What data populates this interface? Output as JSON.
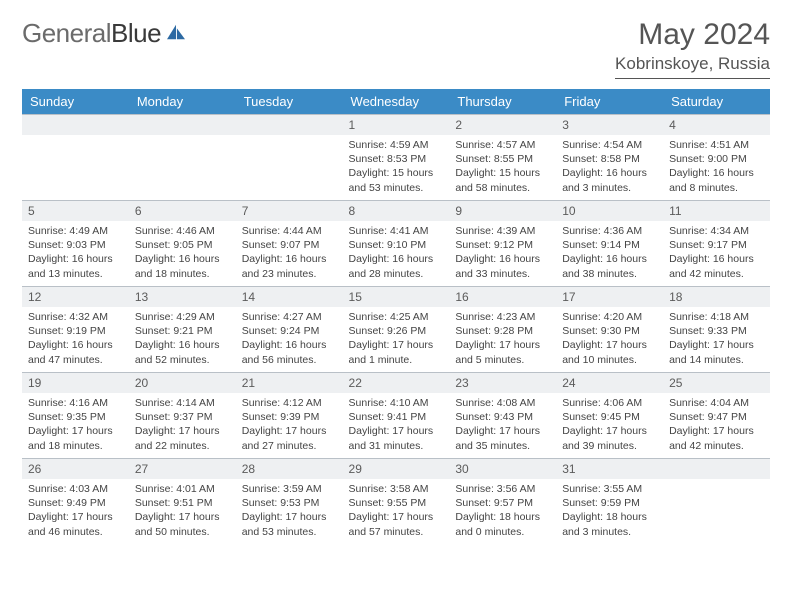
{
  "brand": {
    "text1": "General",
    "text2": "Blue"
  },
  "title": "May 2024",
  "location": "Kobrinskoye, Russia",
  "header_bg": "#3b8bc6",
  "daynum_bg": "#eef0f2",
  "border_color": "#b9c0c7",
  "day_names": [
    "Sunday",
    "Monday",
    "Tuesday",
    "Wednesday",
    "Thursday",
    "Friday",
    "Saturday"
  ],
  "first_weekday": 3,
  "days": [
    {
      "n": 1,
      "sr": "4:59 AM",
      "ss": "8:53 PM",
      "dl": "15 hours and 53 minutes."
    },
    {
      "n": 2,
      "sr": "4:57 AM",
      "ss": "8:55 PM",
      "dl": "15 hours and 58 minutes."
    },
    {
      "n": 3,
      "sr": "4:54 AM",
      "ss": "8:58 PM",
      "dl": "16 hours and 3 minutes."
    },
    {
      "n": 4,
      "sr": "4:51 AM",
      "ss": "9:00 PM",
      "dl": "16 hours and 8 minutes."
    },
    {
      "n": 5,
      "sr": "4:49 AM",
      "ss": "9:03 PM",
      "dl": "16 hours and 13 minutes."
    },
    {
      "n": 6,
      "sr": "4:46 AM",
      "ss": "9:05 PM",
      "dl": "16 hours and 18 minutes."
    },
    {
      "n": 7,
      "sr": "4:44 AM",
      "ss": "9:07 PM",
      "dl": "16 hours and 23 minutes."
    },
    {
      "n": 8,
      "sr": "4:41 AM",
      "ss": "9:10 PM",
      "dl": "16 hours and 28 minutes."
    },
    {
      "n": 9,
      "sr": "4:39 AM",
      "ss": "9:12 PM",
      "dl": "16 hours and 33 minutes."
    },
    {
      "n": 10,
      "sr": "4:36 AM",
      "ss": "9:14 PM",
      "dl": "16 hours and 38 minutes."
    },
    {
      "n": 11,
      "sr": "4:34 AM",
      "ss": "9:17 PM",
      "dl": "16 hours and 42 minutes."
    },
    {
      "n": 12,
      "sr": "4:32 AM",
      "ss": "9:19 PM",
      "dl": "16 hours and 47 minutes."
    },
    {
      "n": 13,
      "sr": "4:29 AM",
      "ss": "9:21 PM",
      "dl": "16 hours and 52 minutes."
    },
    {
      "n": 14,
      "sr": "4:27 AM",
      "ss": "9:24 PM",
      "dl": "16 hours and 56 minutes."
    },
    {
      "n": 15,
      "sr": "4:25 AM",
      "ss": "9:26 PM",
      "dl": "17 hours and 1 minute."
    },
    {
      "n": 16,
      "sr": "4:23 AM",
      "ss": "9:28 PM",
      "dl": "17 hours and 5 minutes."
    },
    {
      "n": 17,
      "sr": "4:20 AM",
      "ss": "9:30 PM",
      "dl": "17 hours and 10 minutes."
    },
    {
      "n": 18,
      "sr": "4:18 AM",
      "ss": "9:33 PM",
      "dl": "17 hours and 14 minutes."
    },
    {
      "n": 19,
      "sr": "4:16 AM",
      "ss": "9:35 PM",
      "dl": "17 hours and 18 minutes."
    },
    {
      "n": 20,
      "sr": "4:14 AM",
      "ss": "9:37 PM",
      "dl": "17 hours and 22 minutes."
    },
    {
      "n": 21,
      "sr": "4:12 AM",
      "ss": "9:39 PM",
      "dl": "17 hours and 27 minutes."
    },
    {
      "n": 22,
      "sr": "4:10 AM",
      "ss": "9:41 PM",
      "dl": "17 hours and 31 minutes."
    },
    {
      "n": 23,
      "sr": "4:08 AM",
      "ss": "9:43 PM",
      "dl": "17 hours and 35 minutes."
    },
    {
      "n": 24,
      "sr": "4:06 AM",
      "ss": "9:45 PM",
      "dl": "17 hours and 39 minutes."
    },
    {
      "n": 25,
      "sr": "4:04 AM",
      "ss": "9:47 PM",
      "dl": "17 hours and 42 minutes."
    },
    {
      "n": 26,
      "sr": "4:03 AM",
      "ss": "9:49 PM",
      "dl": "17 hours and 46 minutes."
    },
    {
      "n": 27,
      "sr": "4:01 AM",
      "ss": "9:51 PM",
      "dl": "17 hours and 50 minutes."
    },
    {
      "n": 28,
      "sr": "3:59 AM",
      "ss": "9:53 PM",
      "dl": "17 hours and 53 minutes."
    },
    {
      "n": 29,
      "sr": "3:58 AM",
      "ss": "9:55 PM",
      "dl": "17 hours and 57 minutes."
    },
    {
      "n": 30,
      "sr": "3:56 AM",
      "ss": "9:57 PM",
      "dl": "18 hours and 0 minutes."
    },
    {
      "n": 31,
      "sr": "3:55 AM",
      "ss": "9:59 PM",
      "dl": "18 hours and 3 minutes."
    }
  ],
  "labels": {
    "sunrise": "Sunrise:",
    "sunset": "Sunset:",
    "daylight": "Daylight:"
  }
}
